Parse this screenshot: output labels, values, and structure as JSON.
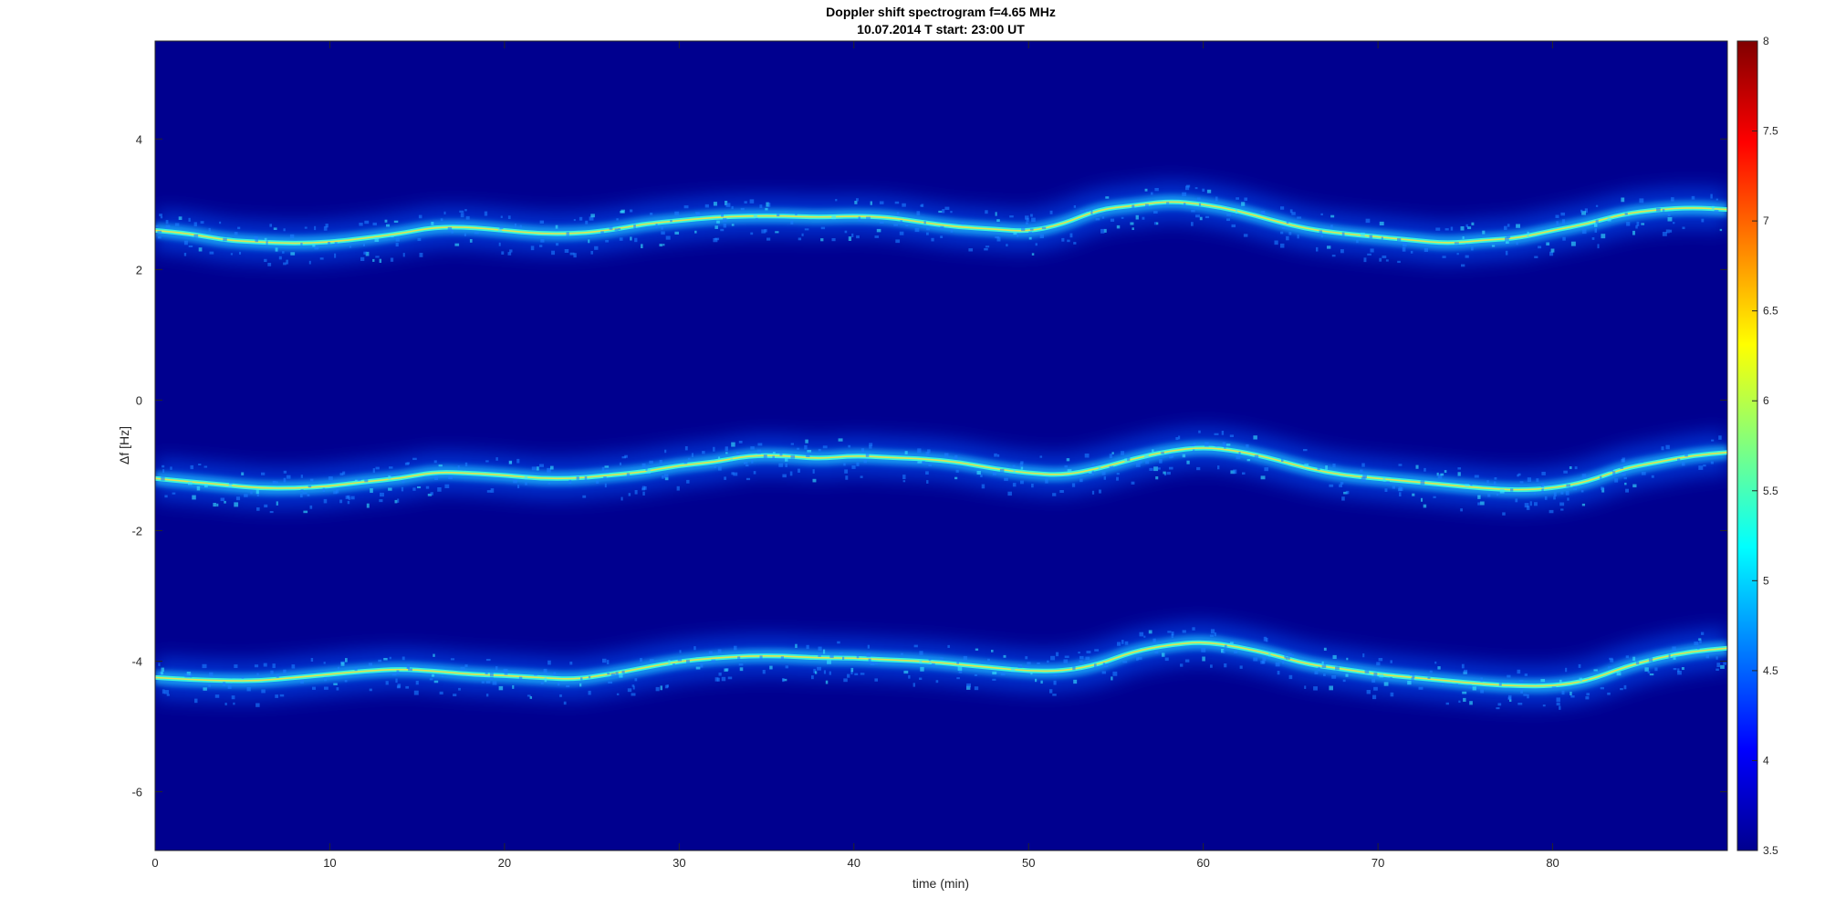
{
  "chart_data": {
    "type": "heatmap",
    "title": "Doppler shift spectrogram f=4.65 MHz",
    "subtitle": "10.07.2014   T start: 23:00 UT",
    "xlabel": "time (min)",
    "ylabel": "Δf [Hz]",
    "xlim": [
      0,
      90
    ],
    "ylim": [
      -6.9,
      5.5
    ],
    "xticks": [
      "0",
      "10",
      "20",
      "30",
      "40",
      "50",
      "60",
      "70",
      "80"
    ],
    "yticks": [
      "4",
      "2",
      "0",
      "-2",
      "-4",
      "-6"
    ],
    "colorbar": {
      "range": [
        3.5,
        8
      ],
      "ticks": [
        "8",
        "7.5",
        "7",
        "6.5",
        "6",
        "5.5",
        "5",
        "4.5",
        "4",
        "3.5"
      ],
      "colormap": "jet"
    },
    "background_color": "#00008f",
    "grid": false,
    "series": [
      {
        "x": [
          0,
          2,
          4,
          6,
          8,
          10,
          12,
          14,
          16,
          18,
          20,
          22,
          24,
          26,
          28,
          30,
          32,
          34,
          36,
          38,
          40,
          42,
          44,
          46,
          48,
          50,
          52,
          54,
          56,
          58,
          60,
          62,
          64,
          66,
          68,
          70,
          72,
          74,
          76,
          78,
          80,
          82,
          84,
          86,
          88,
          90
        ],
        "y": [
          2.6,
          2.55,
          2.45,
          2.42,
          2.4,
          2.42,
          2.48,
          2.55,
          2.65,
          2.65,
          2.6,
          2.55,
          2.55,
          2.6,
          2.7,
          2.75,
          2.8,
          2.82,
          2.82,
          2.8,
          2.82,
          2.8,
          2.72,
          2.65,
          2.62,
          2.58,
          2.7,
          2.92,
          2.98,
          3.05,
          3.0,
          2.9,
          2.75,
          2.62,
          2.55,
          2.5,
          2.45,
          2.4,
          2.45,
          2.48,
          2.6,
          2.7,
          2.85,
          2.92,
          2.95,
          2.92
        ]
      },
      {
        "x": [
          0,
          2,
          4,
          6,
          8,
          10,
          12,
          14,
          16,
          18,
          20,
          22,
          24,
          26,
          28,
          30,
          32,
          34,
          36,
          38,
          40,
          42,
          44,
          46,
          48,
          50,
          52,
          54,
          56,
          58,
          60,
          62,
          64,
          66,
          68,
          70,
          72,
          74,
          76,
          78,
          80,
          82,
          84,
          86,
          88,
          90
        ],
        "y": [
          -1.2,
          -1.25,
          -1.3,
          -1.35,
          -1.35,
          -1.32,
          -1.25,
          -1.2,
          -1.1,
          -1.12,
          -1.15,
          -1.2,
          -1.2,
          -1.15,
          -1.1,
          -1.0,
          -0.95,
          -0.85,
          -0.85,
          -0.9,
          -0.85,
          -0.88,
          -0.9,
          -0.95,
          -1.05,
          -1.12,
          -1.15,
          -1.05,
          -0.9,
          -0.78,
          -0.72,
          -0.78,
          -0.9,
          -1.05,
          -1.15,
          -1.2,
          -1.25,
          -1.3,
          -1.35,
          -1.38,
          -1.35,
          -1.25,
          -1.05,
          -0.95,
          -0.85,
          -0.8
        ]
      },
      {
        "x": [
          0,
          2,
          4,
          6,
          8,
          10,
          12,
          14,
          16,
          18,
          20,
          22,
          24,
          26,
          28,
          30,
          32,
          34,
          36,
          38,
          40,
          42,
          44,
          46,
          48,
          50,
          52,
          54,
          56,
          58,
          60,
          62,
          64,
          66,
          68,
          70,
          72,
          74,
          76,
          78,
          80,
          82,
          84,
          86,
          88,
          90
        ],
        "y": [
          -4.25,
          -4.28,
          -4.3,
          -4.3,
          -4.25,
          -4.2,
          -4.15,
          -4.12,
          -4.15,
          -4.2,
          -4.22,
          -4.25,
          -4.28,
          -4.2,
          -4.1,
          -4.0,
          -3.95,
          -3.92,
          -3.92,
          -3.95,
          -3.95,
          -3.98,
          -4.0,
          -4.05,
          -4.1,
          -4.15,
          -4.15,
          -4.05,
          -3.85,
          -3.75,
          -3.7,
          -3.78,
          -3.9,
          -4.05,
          -4.12,
          -4.2,
          -4.25,
          -4.3,
          -4.35,
          -4.38,
          -4.38,
          -4.3,
          -4.1,
          -3.95,
          -3.85,
          -3.8
        ]
      }
    ]
  }
}
